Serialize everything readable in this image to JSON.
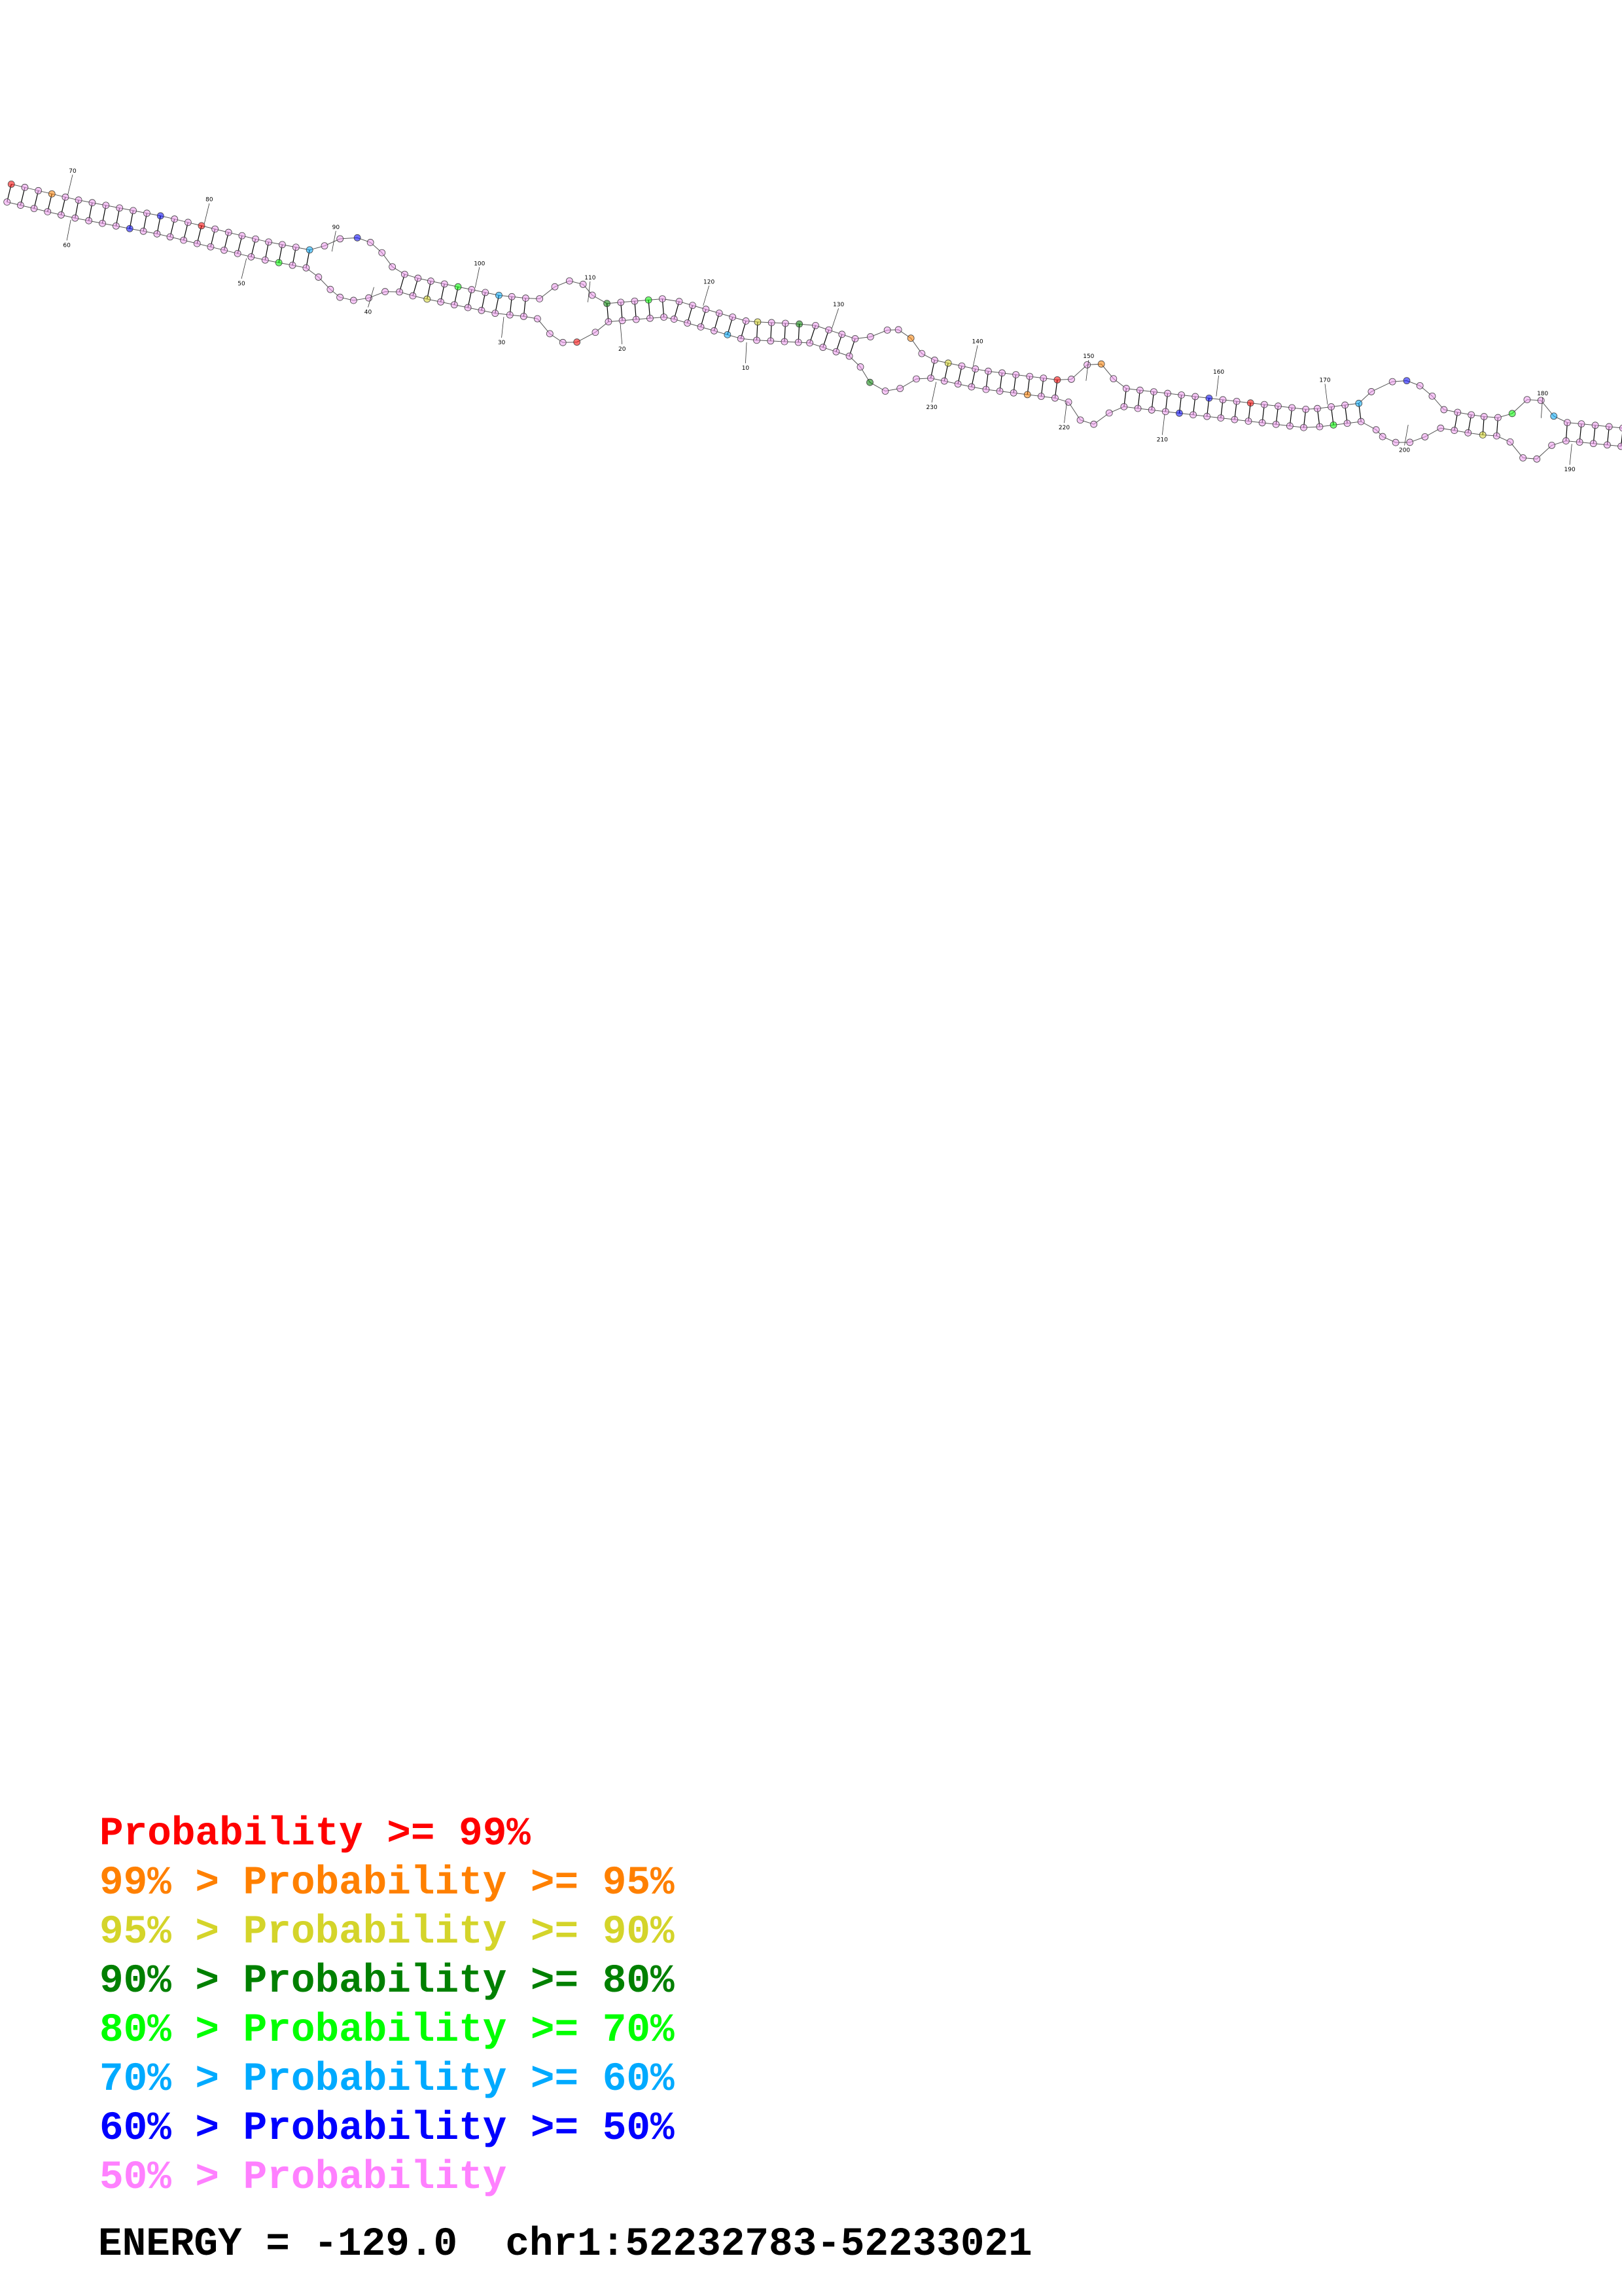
{
  "diagram": {
    "position_labels": [
      "10",
      "20",
      "30",
      "40",
      "50",
      "60",
      "70",
      "80",
      "90",
      "100",
      "110",
      "120",
      "130",
      "140",
      "150",
      "160",
      "170",
      "180",
      "190",
      "200",
      "210",
      "220",
      "230"
    ]
  },
  "legend": [
    {
      "prefix": "",
      "text": "Probability >= 99%",
      "color": "#ff0000"
    },
    {
      "prefix": "99% > ",
      "text": "Probability >= 95%",
      "color": "#ff8000"
    },
    {
      "prefix": "95% > ",
      "text": "Probability >= 90%",
      "color": "#d4d42a"
    },
    {
      "prefix": "90% > ",
      "text": "Probability >= 80%",
      "color": "#008000"
    },
    {
      "prefix": "80% > ",
      "text": "Probability >= 70%",
      "color": "#00ff00"
    },
    {
      "prefix": "70% > ",
      "text": "Probability >= 60%",
      "color": "#00aaff"
    },
    {
      "prefix": "60% > ",
      "text": "Probability >= 50%",
      "color": "#0000ff"
    },
    {
      "prefix": "50% > ",
      "text": "Probability",
      "color": "#ff80ff"
    }
  ],
  "footer": {
    "energy": "ENERGY = -129.0",
    "region": "chr1:52232783-52233021"
  }
}
